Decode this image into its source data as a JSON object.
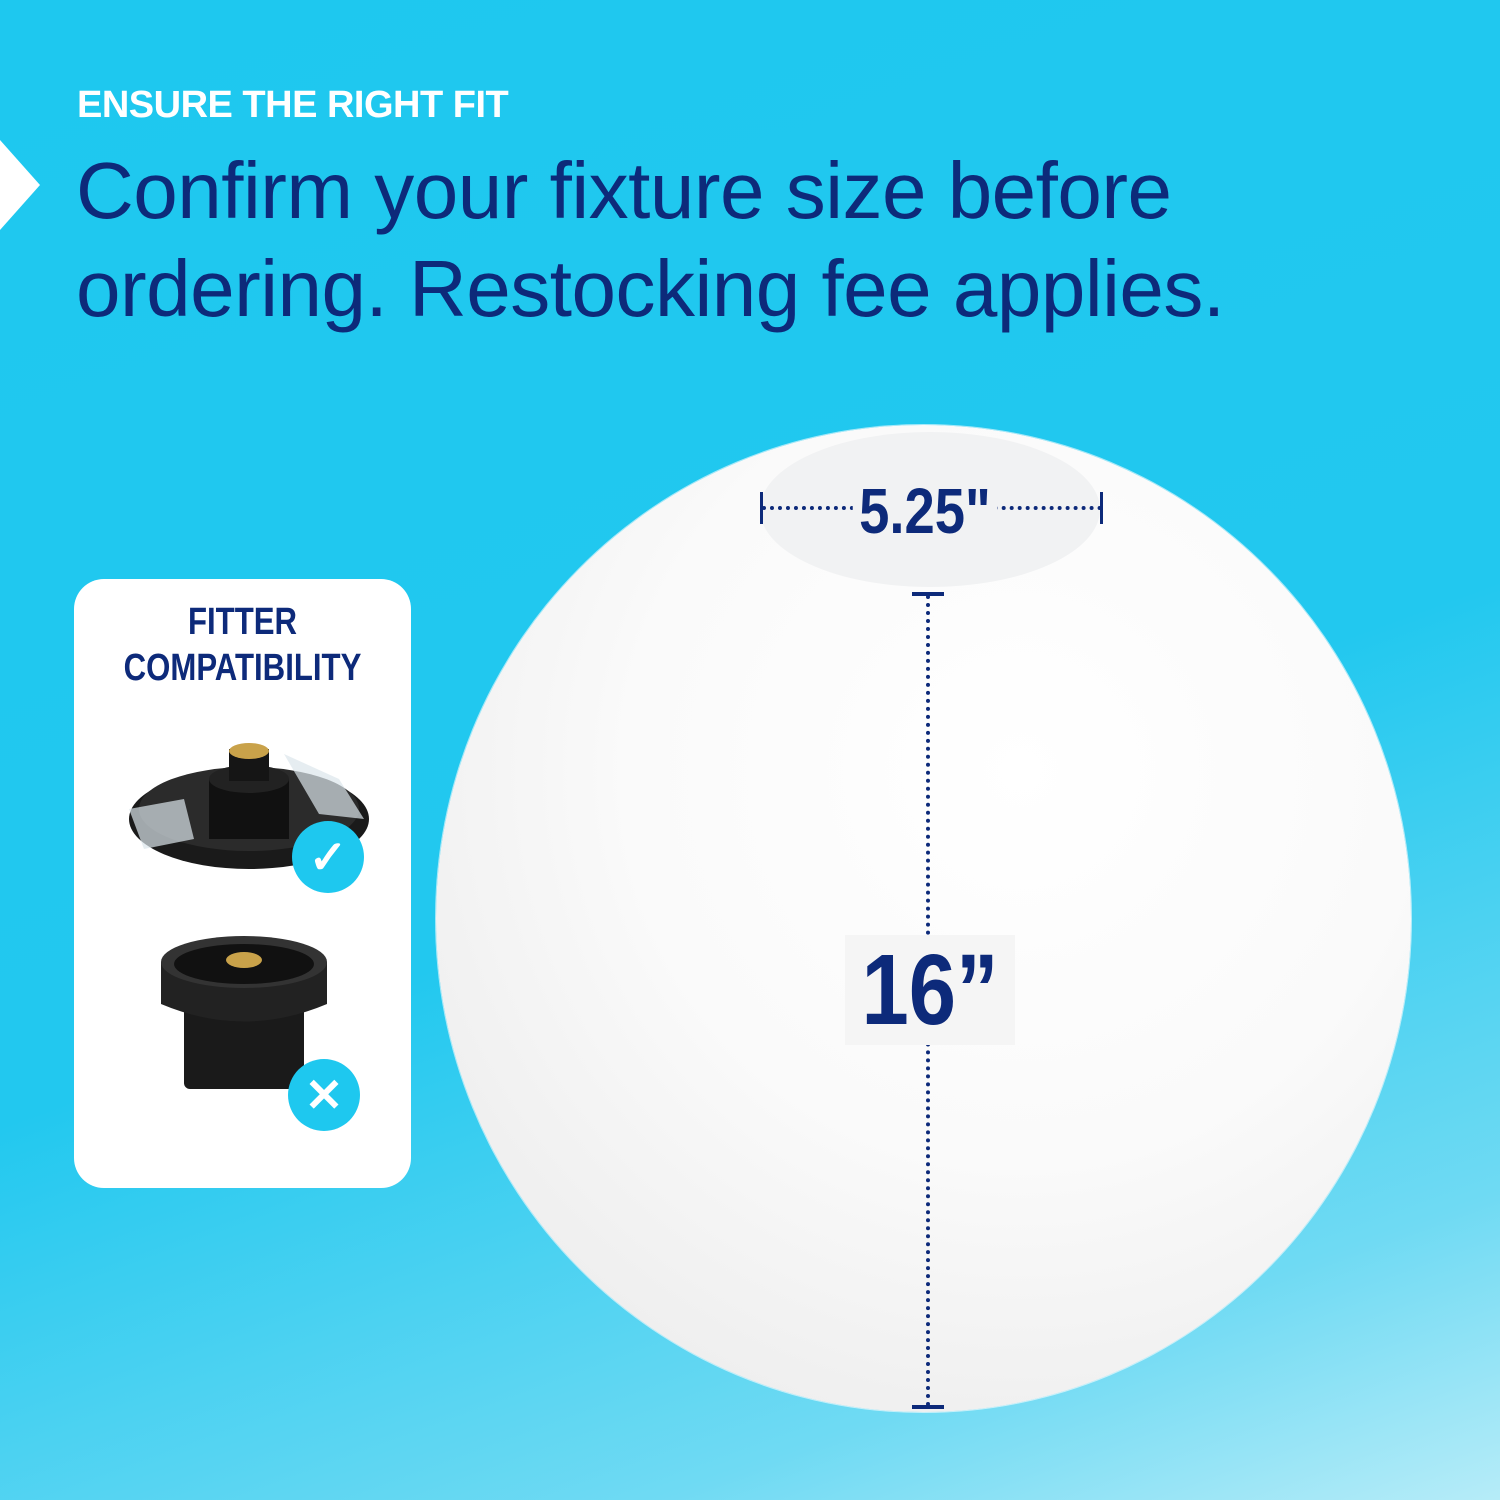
{
  "header": {
    "eyebrow": "ENSURE THE RIGHT FIT",
    "title": "Confirm your fixture size before ordering. Restocking fee applies."
  },
  "product": {
    "opening_dimension": "5.25\"",
    "diameter_dimension": "16”"
  },
  "compatibility": {
    "title_line1": "FITTER",
    "title_line2": "COMPATIBILITY",
    "items": [
      {
        "name": "flat fitter with clear clips",
        "compatible": true,
        "icon": "check-icon"
      },
      {
        "name": "cylindrical fitter",
        "compatible": false,
        "icon": "x-icon"
      }
    ]
  },
  "colors": {
    "background": "#1ec8ef",
    "text_dark": "#0d2a7a",
    "badge": "#1ec8ef"
  }
}
